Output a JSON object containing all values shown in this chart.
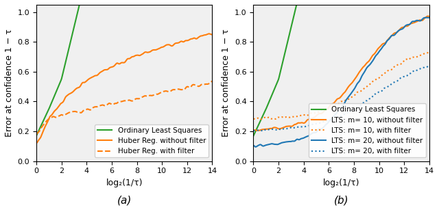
{
  "title_a": "(a)",
  "title_b": "(b)",
  "xlabel": "log₂(1/τ)",
  "ylabel": "Error at confidence 1 − τ",
  "xlim": [
    0,
    14
  ],
  "ylim": [
    0.0,
    1.05
  ],
  "orange_color": "#ff7f0e",
  "blue_color": "#1f77b4",
  "green_color": "#2ca02c",
  "legend_a": [
    "Huber Reg. without filter",
    "Huber Reg. with filter",
    "Ordinary Least Squares"
  ],
  "legend_b": [
    "LTS: m= 10, without filter",
    "LTS: m= 10, with filter",
    "LTS: m= 20, without filter",
    "LTS: m= 20, with filter",
    "Ordinary Least Squares"
  ]
}
